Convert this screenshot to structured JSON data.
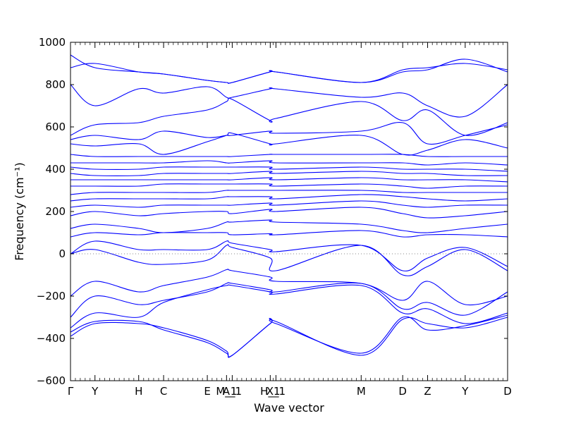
{
  "chart_data": {
    "type": "line",
    "title": "",
    "xlabel": "Wave vector",
    "ylabel": "Frequency (cm⁻¹)",
    "ylim": [
      -600,
      1000
    ],
    "yticks": [
      -600,
      -400,
      -200,
      0,
      200,
      400,
      600,
      800,
      1000
    ],
    "xlim": [
      0,
      1
    ],
    "zero_line": true,
    "grid": false,
    "line_color": "#0000ff",
    "high_symmetry_points": [
      {
        "label": "Γ",
        "x": 0.0
      },
      {
        "label": "Y",
        "x": 0.056
      },
      {
        "label": "H",
        "x": 0.156
      },
      {
        "label": "C",
        "x": 0.213
      },
      {
        "label": "E",
        "x": 0.313
      },
      {
        "label": "M_1",
        "x": 0.357
      },
      {
        "label": "A_1",
        "x": 0.37
      },
      {
        "label": "H_1",
        "x": 0.457
      },
      {
        "label": "X_1",
        "x": 0.47
      },
      {
        "label": "M",
        "x": 0.665
      },
      {
        "label": "D",
        "x": 0.76
      },
      {
        "label": "Z",
        "x": 0.817
      },
      {
        "label": "Y",
        "x": 0.903
      },
      {
        "label": "D",
        "x": 1.0
      }
    ],
    "x": [
      0,
      0.056,
      0.156,
      0.213,
      0.313,
      0.357,
      0.37,
      0.457,
      0.47,
      0.665,
      0.76,
      0.817,
      0.903,
      1.0
    ],
    "series": [
      {
        "values": [
          -370,
          -320,
          -320,
          -360,
          -420,
          -470,
          -480,
          -330,
          -320,
          -480,
          -310,
          -330,
          -350,
          -300
        ]
      },
      {
        "values": [
          -390,
          -330,
          -330,
          -350,
          -410,
          -460,
          -480,
          -330,
          -330,
          -470,
          -300,
          -360,
          -340,
          -290
        ]
      },
      {
        "values": [
          -350,
          -280,
          -300,
          -230,
          -170,
          -150,
          -150,
          -180,
          -190,
          -150,
          -280,
          -260,
          -330,
          -280
        ]
      },
      {
        "values": [
          -300,
          -200,
          -240,
          -220,
          -180,
          -140,
          -140,
          -170,
          -180,
          -140,
          -260,
          -230,
          -290,
          -180
        ]
      },
      {
        "values": [
          -200,
          -130,
          -180,
          -150,
          -110,
          -75,
          -80,
          -110,
          -130,
          -140,
          -220,
          -130,
          -240,
          -200
        ]
      },
      {
        "values": [
          0,
          20,
          -40,
          -50,
          -30,
          40,
          30,
          -20,
          -80,
          40,
          -100,
          -60,
          20,
          -80
        ]
      },
      {
        "values": [
          0,
          60,
          20,
          20,
          20,
          60,
          50,
          20,
          10,
          40,
          -80,
          -20,
          30,
          -60
        ]
      },
      {
        "values": [
          80,
          100,
          90,
          100,
          100,
          100,
          90,
          95,
          90,
          110,
          80,
          90,
          90,
          80
        ]
      },
      {
        "values": [
          120,
          140,
          120,
          100,
          120,
          150,
          150,
          160,
          150,
          140,
          110,
          100,
          120,
          140
        ]
      },
      {
        "values": [
          180,
          200,
          180,
          190,
          200,
          200,
          190,
          210,
          200,
          220,
          190,
          170,
          180,
          200
        ]
      },
      {
        "values": [
          220,
          230,
          220,
          230,
          230,
          230,
          230,
          240,
          230,
          250,
          230,
          220,
          230,
          230
        ]
      },
      {
        "values": [
          250,
          260,
          260,
          260,
          260,
          270,
          270,
          270,
          260,
          280,
          270,
          260,
          250,
          260
        ]
      },
      {
        "values": [
          280,
          290,
          290,
          290,
          290,
          300,
          300,
          300,
          300,
          300,
          290,
          290,
          290,
          290
        ]
      },
      {
        "values": [
          320,
          320,
          320,
          330,
          330,
          330,
          330,
          330,
          320,
          330,
          320,
          310,
          320,
          320
        ]
      },
      {
        "values": [
          350,
          350,
          350,
          350,
          350,
          350,
          350,
          360,
          350,
          360,
          350,
          350,
          350,
          340
        ]
      },
      {
        "values": [
          380,
          370,
          370,
          380,
          380,
          380,
          380,
          390,
          380,
          390,
          380,
          380,
          370,
          370
        ]
      },
      {
        "values": [
          410,
          400,
          400,
          410,
          410,
          410,
          410,
          410,
          400,
          410,
          400,
          400,
          400,
          390
        ]
      },
      {
        "values": [
          430,
          430,
          430,
          430,
          440,
          430,
          430,
          440,
          430,
          430,
          430,
          420,
          430,
          420
        ]
      },
      {
        "values": [
          470,
          460,
          460,
          460,
          460,
          460,
          460,
          470,
          470,
          470,
          470,
          460,
          460,
          460
        ]
      },
      {
        "values": [
          520,
          510,
          520,
          470,
          530,
          560,
          570,
          520,
          520,
          560,
          470,
          490,
          540,
          500
        ]
      },
      {
        "values": [
          540,
          560,
          540,
          580,
          550,
          560,
          560,
          580,
          570,
          580,
          620,
          520,
          560,
          610
        ]
      },
      {
        "values": [
          560,
          610,
          620,
          650,
          680,
          720,
          730,
          630,
          640,
          720,
          630,
          680,
          560,
          620
        ]
      },
      {
        "values": [
          800,
          700,
          780,
          760,
          790,
          740,
          740,
          780,
          780,
          740,
          760,
          700,
          650,
          800
        ]
      },
      {
        "values": [
          880,
          900,
          860,
          850,
          820,
          810,
          810,
          860,
          860,
          810,
          860,
          870,
          920,
          860
        ]
      },
      {
        "values": [
          940,
          880,
          860,
          850,
          820,
          810,
          810,
          860,
          860,
          810,
          870,
          880,
          900,
          870
        ]
      }
    ]
  }
}
